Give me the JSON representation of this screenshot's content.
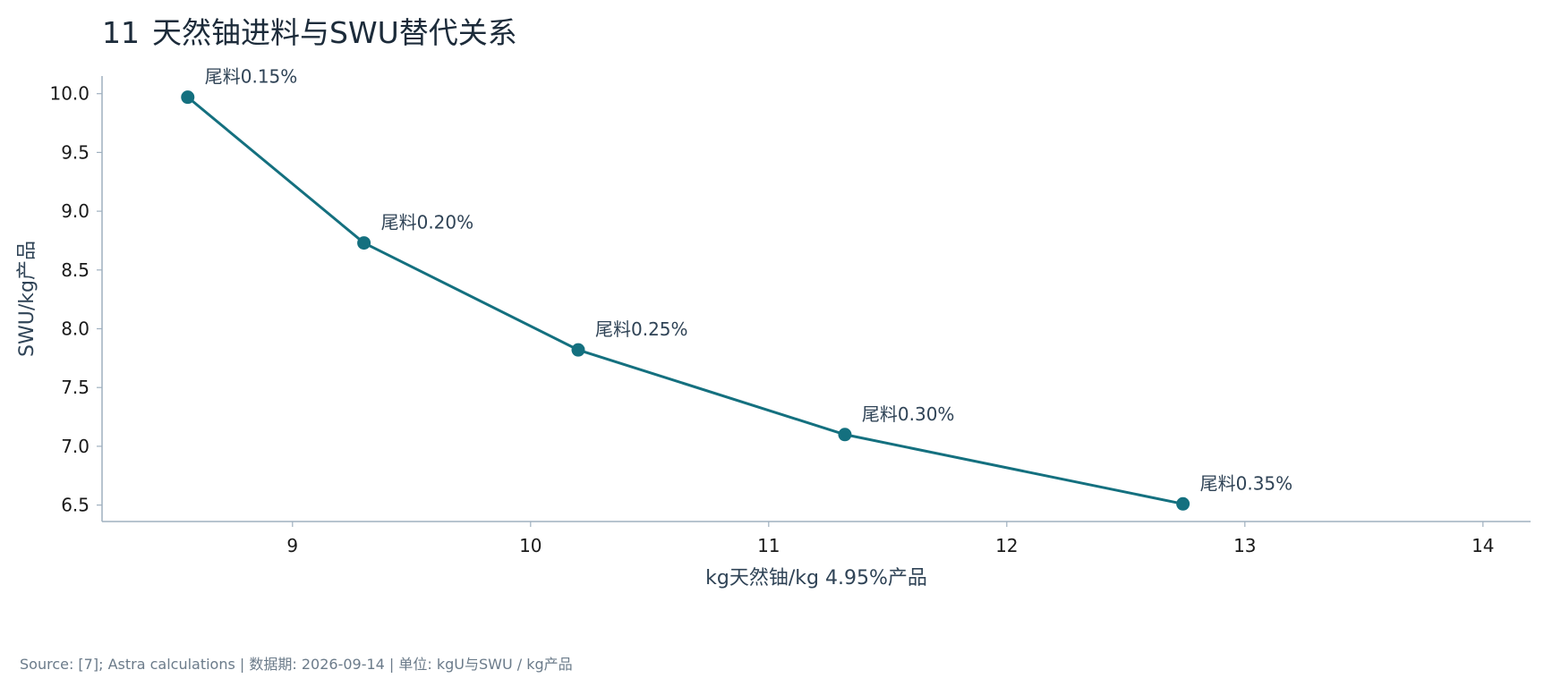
{
  "page": {
    "title_number": "11",
    "title_text": "天然铀进料与SWU替代关系",
    "footer": "Source: [7]; Astra calculations | 数据期: 2026-09-14 | 单位: kgU与SWU / kg产品"
  },
  "colors": {
    "series": "#14707f",
    "axis": "#9fb0bf",
    "text": "#2f4356"
  },
  "chart_data": {
    "type": "line",
    "title": "天然铀进料与SWU替代关系",
    "xlabel": "kg天然铀/kg 4.95%产品",
    "ylabel": "SWU/kg产品",
    "xlim": [
      8.2,
      14.2
    ],
    "ylim": [
      6.36,
      10.15
    ],
    "x_ticks": [
      9,
      10,
      11,
      12,
      13,
      14
    ],
    "y_ticks": [
      6.5,
      7.0,
      7.5,
      8.0,
      8.5,
      9.0,
      9.5,
      10.0
    ],
    "grid": false,
    "legend": "none",
    "series": [
      {
        "x": [
          8.56,
          9.3,
          10.2,
          11.32,
          12.74
        ],
        "y": [
          9.97,
          8.73,
          7.82,
          7.1,
          6.51
        ],
        "labels": [
          "尾料0.15%",
          "尾料0.20%",
          "尾料0.25%",
          "尾料0.30%",
          "尾料0.35%"
        ]
      }
    ]
  }
}
